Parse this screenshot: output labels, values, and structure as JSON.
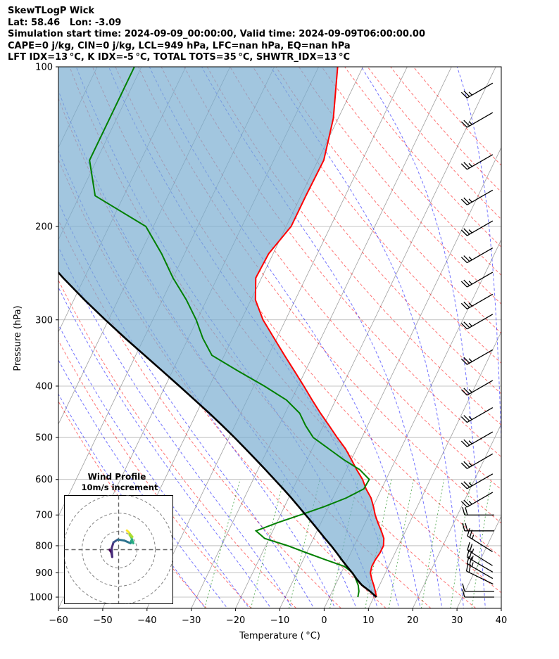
{
  "header": {
    "title": "SkewTLogP Wick",
    "location": "Lat: 58.46   Lon: -3.09",
    "times": "Simulation start time: 2024-09-09_00:00:00, Valid time: 2024-09-09T06:00:00.00",
    "cape_line": "CAPE=0 j/kg, CIN=0 j/kg, LCL=949 hPa, LFC=nan hPa, EQ=nan hPa",
    "index_line": "LFT IDX=13 °C, K IDX=-5 °C, TOTAL TOTS=35 °C, SHWTR_IDX=13 °C"
  },
  "chart_data": {
    "type": "line",
    "xlabel": "Temperature ( °C)",
    "ylabel": "Pressure (hPa)",
    "xlim": [
      -60,
      40
    ],
    "ylim": [
      1050,
      100
    ],
    "x_ticks": [
      -60,
      -50,
      -40,
      -30,
      -20,
      -10,
      0,
      10,
      20,
      30,
      40
    ],
    "y_ticks": [
      100,
      200,
      300,
      400,
      500,
      600,
      700,
      800,
      900,
      1000
    ],
    "y_scale": "log",
    "grid": true,
    "colors": {
      "temperature": "#ff0000",
      "dewpoint": "#008000",
      "parcel": "#000000",
      "shade": "#7aaed2",
      "dry_adiabats": "#ff0000",
      "moist_adiabats": "#0000ff",
      "mixing_ratio": "#0000ff",
      "isotherms": "#999999"
    },
    "series": [
      {
        "name": "temperature",
        "pressure": [
          1000,
          975,
          950,
          925,
          900,
          875,
          850,
          825,
          800,
          775,
          750,
          725,
          700,
          675,
          650,
          625,
          600,
          575,
          550,
          525,
          500,
          475,
          450,
          425,
          400,
          375,
          350,
          325,
          300,
          275,
          250,
          225,
          200,
          175,
          150,
          125,
          100
        ],
        "values": [
          10.6,
          9.7,
          8.7,
          7.6,
          6.6,
          6.2,
          6.3,
          6.6,
          6.6,
          5.9,
          4.5,
          2.9,
          1.4,
          0.1,
          -1.4,
          -3.5,
          -5.3,
          -7.7,
          -10.0,
          -12.5,
          -15.6,
          -18.7,
          -22.0,
          -25.3,
          -28.7,
          -32.4,
          -36.4,
          -40.6,
          -45.1,
          -49.0,
          -51.3,
          -51.0,
          -48.9,
          -48.9,
          -48.7,
          -51.1,
          -55.7
        ]
      },
      {
        "name": "dewpoint",
        "pressure": [
          1000,
          975,
          950,
          925,
          900,
          875,
          850,
          825,
          800,
          775,
          750,
          725,
          700,
          675,
          650,
          625,
          600,
          575,
          550,
          525,
          500,
          475,
          450,
          425,
          400,
          375,
          350,
          325,
          300,
          275,
          250,
          225,
          200,
          175,
          150,
          125,
          100
        ],
        "values": [
          6.4,
          6.0,
          5.2,
          4.0,
          2.6,
          0.0,
          -5.0,
          -10.0,
          -15.0,
          -21.0,
          -23.8,
          -20.0,
          -15.5,
          -11.0,
          -7.0,
          -4.0,
          -3.8,
          -7.0,
          -11.8,
          -16.3,
          -21.0,
          -24.0,
          -26.7,
          -31.1,
          -37.6,
          -45.1,
          -52.8,
          -56.7,
          -60.2,
          -64.6,
          -70.0,
          -75.2,
          -81.7,
          -96.5,
          -101.6,
          -101.6,
          -101.6
        ]
      },
      {
        "name": "parcel",
        "pressure": [
          1000,
          975,
          949,
          925,
          900,
          875,
          850,
          825,
          800,
          775,
          750,
          725,
          700,
          675,
          650,
          625,
          600,
          575,
          550,
          525,
          500,
          475,
          450,
          425,
          400,
          375,
          350,
          325,
          300,
          275,
          250,
          225,
          200,
          175,
          150,
          125,
          100
        ],
        "values": [
          10.6,
          8.5,
          6.0,
          4.2,
          2.5,
          0.6,
          -1.3,
          -3.2,
          -5.2,
          -7.4,
          -9.6,
          -11.9,
          -14.3,
          -16.8,
          -19.4,
          -22.2,
          -25.2,
          -28.3,
          -31.6,
          -35.1,
          -38.8,
          -42.8,
          -47.1,
          -51.8,
          -56.8,
          -62.2,
          -68.0,
          -74.2,
          -80.7,
          -87.6,
          -94.8,
          -102.3,
          -110.1,
          -118.3,
          -126.8,
          -135.8,
          -145.7
        ]
      }
    ],
    "wind_barbs": [
      {
        "pressure": 1000,
        "speed_kt": 10,
        "dir_deg": 270
      },
      {
        "pressure": 975,
        "speed_kt": 10,
        "dir_deg": 270
      },
      {
        "pressure": 925,
        "speed_kt": 20,
        "dir_deg": 296
      },
      {
        "pressure": 900,
        "speed_kt": 25,
        "dir_deg": 300
      },
      {
        "pressure": 875,
        "speed_kt": 25,
        "dir_deg": 300
      },
      {
        "pressure": 850,
        "speed_kt": 25,
        "dir_deg": 302
      },
      {
        "pressure": 800,
        "speed_kt": 25,
        "dir_deg": 302
      },
      {
        "pressure": 750,
        "speed_kt": 20,
        "dir_deg": 270
      },
      {
        "pressure": 700,
        "speed_kt": 20,
        "dir_deg": 270
      },
      {
        "pressure": 650,
        "speed_kt": 25,
        "dir_deg": 240
      },
      {
        "pressure": 600,
        "speed_kt": 25,
        "dir_deg": 240
      },
      {
        "pressure": 550,
        "speed_kt": 25,
        "dir_deg": 240
      },
      {
        "pressure": 500,
        "speed_kt": 25,
        "dir_deg": 240
      },
      {
        "pressure": 450,
        "speed_kt": 25,
        "dir_deg": 240
      },
      {
        "pressure": 400,
        "speed_kt": 25,
        "dir_deg": 240
      },
      {
        "pressure": 350,
        "speed_kt": 25,
        "dir_deg": 240
      },
      {
        "pressure": 300,
        "speed_kt": 25,
        "dir_deg": 240
      },
      {
        "pressure": 275,
        "speed_kt": 25,
        "dir_deg": 240
      },
      {
        "pressure": 250,
        "speed_kt": 25,
        "dir_deg": 240
      },
      {
        "pressure": 225,
        "speed_kt": 25,
        "dir_deg": 240
      },
      {
        "pressure": 200,
        "speed_kt": 25,
        "dir_deg": 240
      },
      {
        "pressure": 175,
        "speed_kt": 25,
        "dir_deg": 240
      },
      {
        "pressure": 150,
        "speed_kt": 25,
        "dir_deg": 240
      },
      {
        "pressure": 125,
        "speed_kt": 25,
        "dir_deg": 240
      },
      {
        "pressure": 110,
        "speed_kt": 25,
        "dir_deg": 240
      }
    ],
    "hodograph": {
      "title": "Wind Profile",
      "subtitle": "10m/s increment",
      "ring_speeds_ms": [
        10,
        20,
        30
      ],
      "points_uv": [
        [
          -5.0,
          0.0
        ],
        [
          -4.0,
          -1.5
        ],
        [
          -3.5,
          -4.0
        ],
        [
          -3.8,
          0.8
        ],
        [
          -2.8,
          4.0
        ],
        [
          -0.5,
          5.5
        ],
        [
          3.0,
          5.0
        ],
        [
          6.5,
          3.5
        ],
        [
          7.0,
          5.0
        ],
        [
          8.0,
          3.5
        ],
        [
          7.0,
          6.5
        ],
        [
          6.0,
          8.0
        ],
        [
          7.5,
          7.0
        ],
        [
          5.5,
          9.5
        ],
        [
          4.5,
          10.5
        ]
      ],
      "colormap": "viridis"
    }
  }
}
